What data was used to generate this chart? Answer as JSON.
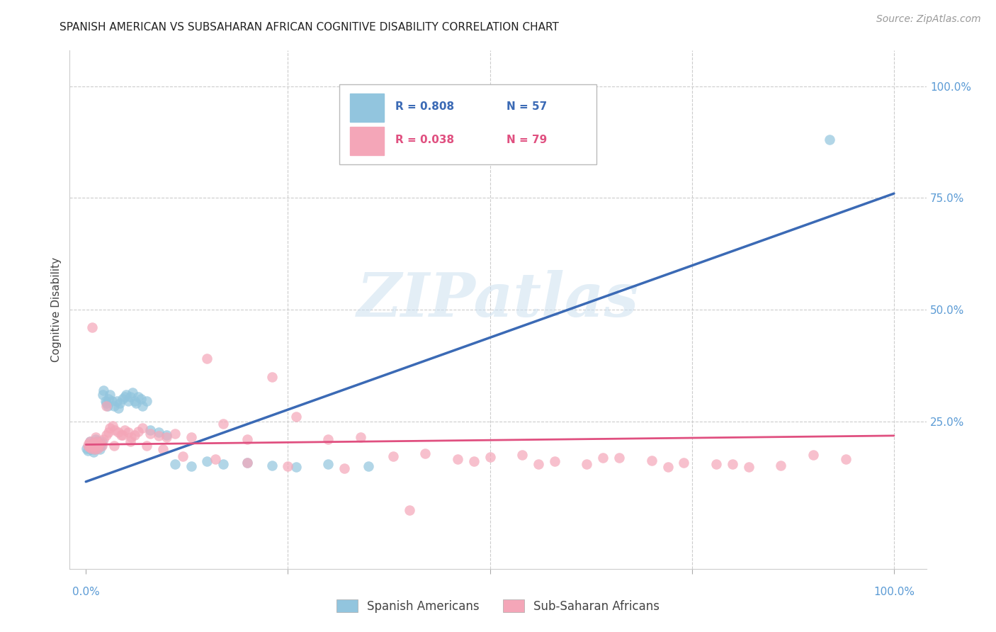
{
  "title": "SPANISH AMERICAN VS SUBSAHARAN AFRICAN COGNITIVE DISABILITY CORRELATION CHART",
  "source": "Source: ZipAtlas.com",
  "ylabel": "Cognitive Disability",
  "legend_blue_r": "R = 0.808",
  "legend_blue_n": "N = 57",
  "legend_pink_r": "R = 0.038",
  "legend_pink_n": "N = 79",
  "legend1_label": "Spanish Americans",
  "legend2_label": "Sub-Saharan Africans",
  "blue_color": "#92c5de",
  "pink_color": "#f4a6b8",
  "blue_line_color": "#3b6ab5",
  "pink_line_color": "#e05080",
  "watermark_text": "ZIPatlas",
  "background_color": "#ffffff",
  "blue_scatter_x": [
    0.001,
    0.002,
    0.003,
    0.004,
    0.005,
    0.006,
    0.007,
    0.008,
    0.009,
    0.01,
    0.011,
    0.012,
    0.013,
    0.014,
    0.015,
    0.016,
    0.017,
    0.018,
    0.019,
    0.02,
    0.021,
    0.022,
    0.024,
    0.025,
    0.027,
    0.028,
    0.03,
    0.032,
    0.035,
    0.038,
    0.04,
    0.042,
    0.045,
    0.048,
    0.05,
    0.052,
    0.055,
    0.058,
    0.06,
    0.062,
    0.065,
    0.068,
    0.07,
    0.075,
    0.08,
    0.09,
    0.1,
    0.11,
    0.13,
    0.15,
    0.17,
    0.2,
    0.23,
    0.26,
    0.3,
    0.35,
    0.92
  ],
  "blue_scatter_y": [
    0.19,
    0.185,
    0.195,
    0.192,
    0.205,
    0.188,
    0.198,
    0.193,
    0.182,
    0.187,
    0.2,
    0.21,
    0.195,
    0.205,
    0.198,
    0.192,
    0.188,
    0.2,
    0.195,
    0.205,
    0.31,
    0.32,
    0.295,
    0.29,
    0.285,
    0.3,
    0.31,
    0.295,
    0.285,
    0.295,
    0.28,
    0.29,
    0.3,
    0.305,
    0.31,
    0.295,
    0.305,
    0.315,
    0.295,
    0.29,
    0.305,
    0.3,
    0.285,
    0.295,
    0.23,
    0.225,
    0.22,
    0.155,
    0.15,
    0.16,
    0.155,
    0.158,
    0.152,
    0.148,
    0.155,
    0.15,
    0.88
  ],
  "pink_scatter_x": [
    0.002,
    0.003,
    0.004,
    0.005,
    0.006,
    0.007,
    0.008,
    0.009,
    0.01,
    0.011,
    0.012,
    0.013,
    0.014,
    0.015,
    0.016,
    0.018,
    0.02,
    0.022,
    0.025,
    0.028,
    0.03,
    0.033,
    0.036,
    0.04,
    0.044,
    0.048,
    0.052,
    0.056,
    0.06,
    0.065,
    0.07,
    0.08,
    0.09,
    0.1,
    0.11,
    0.13,
    0.15,
    0.17,
    0.2,
    0.23,
    0.26,
    0.3,
    0.34,
    0.38,
    0.42,
    0.46,
    0.5,
    0.54,
    0.58,
    0.62,
    0.66,
    0.7,
    0.74,
    0.78,
    0.82,
    0.86,
    0.9,
    0.94,
    0.008,
    0.012,
    0.025,
    0.035,
    0.045,
    0.055,
    0.075,
    0.095,
    0.12,
    0.16,
    0.2,
    0.25,
    0.32,
    0.4,
    0.48,
    0.56,
    0.64,
    0.72,
    0.8
  ],
  "pink_scatter_y": [
    0.195,
    0.2,
    0.192,
    0.205,
    0.198,
    0.19,
    0.195,
    0.2,
    0.195,
    0.188,
    0.2,
    0.205,
    0.195,
    0.19,
    0.198,
    0.202,
    0.195,
    0.21,
    0.22,
    0.225,
    0.235,
    0.24,
    0.23,
    0.225,
    0.22,
    0.23,
    0.225,
    0.215,
    0.22,
    0.228,
    0.235,
    0.222,
    0.218,
    0.215,
    0.222,
    0.215,
    0.39,
    0.245,
    0.21,
    0.35,
    0.26,
    0.21,
    0.215,
    0.172,
    0.178,
    0.165,
    0.17,
    0.175,
    0.16,
    0.155,
    0.168,
    0.162,
    0.158,
    0.155,
    0.148,
    0.152,
    0.175,
    0.165,
    0.46,
    0.215,
    0.285,
    0.195,
    0.22,
    0.205,
    0.195,
    0.188,
    0.172,
    0.165,
    0.158,
    0.15,
    0.145,
    0.052,
    0.16,
    0.155,
    0.168,
    0.148,
    0.155
  ],
  "blue_line_x": [
    0.0,
    1.0
  ],
  "blue_line_y": [
    0.115,
    0.76
  ],
  "pink_line_x": [
    0.0,
    1.0
  ],
  "pink_line_y": [
    0.198,
    0.218
  ],
  "xlim": [
    -0.02,
    1.04
  ],
  "ylim": [
    -0.08,
    1.08
  ],
  "ygrid_values": [
    0.25,
    0.5,
    0.75,
    1.0
  ],
  "xgrid_values": [
    0.25,
    0.5,
    0.75,
    1.0
  ],
  "ytick_right": [
    0.0,
    0.25,
    0.5,
    0.75,
    1.0
  ],
  "ytick_right_labels": [
    "",
    "25.0%",
    "50.0%",
    "75.0%",
    "100.0%"
  ],
  "tick_color": "#5b9bd5",
  "title_fontsize": 11,
  "axis_label_fontsize": 11,
  "tick_fontsize": 11
}
